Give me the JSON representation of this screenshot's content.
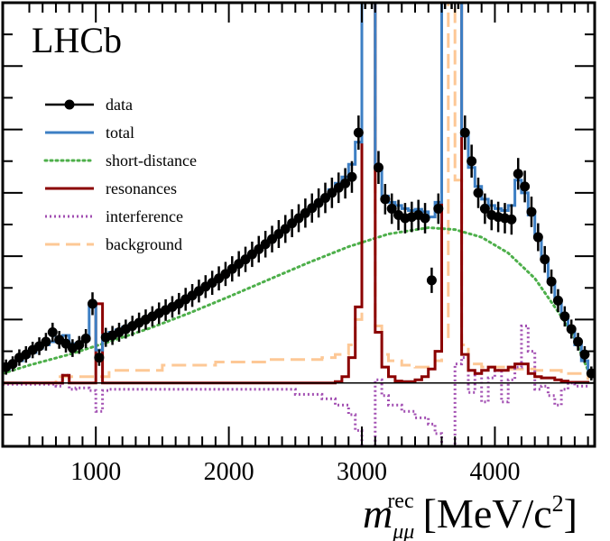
{
  "chart_data": {
    "type": "line",
    "title": "",
    "watermark": "LHCb",
    "xlabel": {
      "symbol": "m",
      "subscript": "μμ",
      "superscript": "rec",
      "unit": "[MeV/c",
      "unit_power": "2",
      "unit_close": "]"
    },
    "ylabel": "",
    "xlim": [
      300,
      4750
    ],
    "ylim": [
      -1.0,
      6.0
    ],
    "x_ticks": [
      1000,
      2000,
      3000,
      4000
    ],
    "x_tick_labels": [
      "1000",
      "2000",
      "3000",
      "4000"
    ],
    "colors": {
      "data": "#000000",
      "total": "#3d7fc4",
      "short_distance": "#4daf4a",
      "resonances": "#8b0000",
      "interference": "#a24fb2",
      "background": "#fdc896",
      "zero_line": "#000000"
    },
    "legend": {
      "placement": "upper-left",
      "entries": [
        {
          "key": "data",
          "label": "data"
        },
        {
          "key": "total",
          "label": "total"
        },
        {
          "key": "short_distance",
          "label": "short-distance"
        },
        {
          "key": "resonances",
          "label": "resonances"
        },
        {
          "key": "interference",
          "label": "interference"
        },
        {
          "key": "background",
          "label": "background"
        }
      ]
    },
    "data": {
      "x": [
        325,
        375,
        425,
        475,
        525,
        575,
        625,
        675,
        725,
        775,
        825,
        875,
        925,
        975,
        1025,
        1075,
        1125,
        1175,
        1225,
        1275,
        1325,
        1375,
        1425,
        1475,
        1525,
        1575,
        1625,
        1675,
        1725,
        1775,
        1825,
        1875,
        1925,
        1975,
        2025,
        2075,
        2125,
        2175,
        2225,
        2275,
        2325,
        2375,
        2425,
        2475,
        2525,
        2575,
        2625,
        2675,
        2725,
        2775,
        2825,
        2875,
        2925,
        2975,
        3025,
        3075,
        3125,
        3175,
        3225,
        3275,
        3325,
        3375,
        3425,
        3475,
        3525,
        3575,
        3625,
        3675,
        3725,
        3775,
        3825,
        3875,
        3925,
        3975,
        4025,
        4075,
        4125,
        4175,
        4225,
        4275,
        4325,
        4375,
        4425,
        4475,
        4525,
        4575,
        4625,
        4675,
        4725
      ],
      "y": [
        0.25,
        0.3,
        0.4,
        0.45,
        0.52,
        0.58,
        0.65,
        0.8,
        0.68,
        0.62,
        0.55,
        0.6,
        0.7,
        1.25,
        0.4,
        0.72,
        0.75,
        0.8,
        0.85,
        0.9,
        0.95,
        1.0,
        1.05,
        1.1,
        1.15,
        1.2,
        1.25,
        1.32,
        1.38,
        1.45,
        1.52,
        1.58,
        1.65,
        1.72,
        1.8,
        1.88,
        1.95,
        2.03,
        2.11,
        2.19,
        2.27,
        2.35,
        2.43,
        2.52,
        2.6,
        2.68,
        2.76,
        2.84,
        2.92,
        3.0,
        3.08,
        3.15,
        3.25,
        3.95,
        6.2,
        6.2,
        3.4,
        2.9,
        2.75,
        2.65,
        2.6,
        2.62,
        2.65,
        2.6,
        1.62,
        2.75,
        6.2,
        6.2,
        6.2,
        3.95,
        3.5,
        3.0,
        2.75,
        2.65,
        2.62,
        2.6,
        2.58,
        3.3,
        3.1,
        2.7,
        2.3,
        1.95,
        1.6,
        1.3,
        1.05,
        0.85,
        0.65,
        0.45,
        0.15
      ],
      "yerr": [
        0.12,
        0.12,
        0.13,
        0.13,
        0.13,
        0.14,
        0.14,
        0.15,
        0.14,
        0.14,
        0.14,
        0.14,
        0.15,
        0.18,
        0.13,
        0.15,
        0.15,
        0.15,
        0.15,
        0.16,
        0.16,
        0.16,
        0.16,
        0.17,
        0.17,
        0.17,
        0.17,
        0.18,
        0.18,
        0.18,
        0.18,
        0.19,
        0.19,
        0.19,
        0.2,
        0.2,
        0.2,
        0.2,
        0.21,
        0.21,
        0.21,
        0.22,
        0.22,
        0.22,
        0.22,
        0.23,
        0.23,
        0.23,
        0.24,
        0.24,
        0.24,
        0.24,
        0.25,
        0.27,
        0.3,
        0.3,
        0.26,
        0.24,
        0.24,
        0.24,
        0.24,
        0.24,
        0.24,
        0.24,
        0.2,
        0.24,
        0.3,
        0.3,
        0.3,
        0.27,
        0.26,
        0.24,
        0.24,
        0.24,
        0.24,
        0.24,
        0.24,
        0.25,
        0.25,
        0.24,
        0.22,
        0.21,
        0.19,
        0.18,
        0.16,
        0.15,
        0.14,
        0.13,
        0.11
      ]
    },
    "total": {
      "x": [
        300,
        350,
        400,
        450,
        500,
        550,
        600,
        650,
        700,
        750,
        800,
        850,
        900,
        950,
        1000,
        1050,
        1100,
        1150,
        1200,
        1250,
        1300,
        1350,
        1400,
        1450,
        1500,
        1550,
        1600,
        1650,
        1700,
        1750,
        1800,
        1850,
        1900,
        1950,
        2000,
        2050,
        2100,
        2150,
        2200,
        2250,
        2300,
        2350,
        2400,
        2450,
        2500,
        2550,
        2600,
        2650,
        2700,
        2750,
        2800,
        2850,
        2900,
        2950,
        3000,
        3050,
        3100,
        3150,
        3200,
        3250,
        3300,
        3350,
        3400,
        3450,
        3500,
        3550,
        3600,
        3650,
        3700,
        3750,
        3800,
        3850,
        3900,
        3950,
        4000,
        4050,
        4100,
        4150,
        4200,
        4250,
        4300,
        4350,
        4400,
        4450,
        4500,
        4550,
        4600,
        4650,
        4700
      ],
      "y": [
        0.22,
        0.28,
        0.35,
        0.42,
        0.48,
        0.55,
        0.6,
        0.65,
        0.72,
        0.75,
        0.62,
        0.62,
        0.68,
        1.25,
        0.52,
        0.75,
        0.8,
        0.84,
        0.88,
        0.92,
        0.96,
        1.0,
        1.05,
        1.1,
        1.15,
        1.2,
        1.25,
        1.32,
        1.38,
        1.45,
        1.52,
        1.58,
        1.65,
        1.72,
        1.8,
        1.88,
        1.95,
        2.03,
        2.11,
        2.19,
        2.27,
        2.35,
        2.43,
        2.52,
        2.6,
        2.68,
        2.76,
        2.84,
        2.92,
        3.05,
        3.15,
        3.25,
        3.45,
        3.8,
        6.2,
        6.2,
        3.4,
        2.95,
        2.85,
        2.8,
        2.75,
        2.72,
        2.74,
        2.7,
        2.62,
        2.85,
        6.2,
        6.2,
        6.2,
        3.9,
        3.4,
        3.1,
        2.9,
        2.8,
        2.75,
        2.72,
        2.8,
        3.2,
        3.0,
        2.65,
        2.3,
        1.95,
        1.6,
        1.3,
        1.05,
        0.85,
        0.6,
        0.35,
        0.2
      ]
    },
    "short_distance": {
      "x": [
        300,
        500,
        800,
        1100,
        1400,
        1700,
        2000,
        2300,
        2600,
        2900,
        3200,
        3500,
        3700,
        3900,
        4100,
        4300,
        4500,
        4600,
        4700
      ],
      "y": [
        0.15,
        0.28,
        0.45,
        0.65,
        0.86,
        1.1,
        1.36,
        1.63,
        1.9,
        2.15,
        2.35,
        2.45,
        2.42,
        2.3,
        2.05,
        1.65,
        1.05,
        0.7,
        0.2
      ]
    },
    "resonances": {
      "x": [
        300,
        700,
        750,
        800,
        850,
        950,
        1000,
        1050,
        1100,
        2700,
        2800,
        2850,
        2900,
        2950,
        3000,
        3050,
        3100,
        3150,
        3200,
        3250,
        3300,
        3350,
        3400,
        3450,
        3500,
        3550,
        3600,
        3650,
        3700,
        3750,
        3800,
        3850,
        3900,
        3950,
        4000,
        4050,
        4100,
        4150,
        4200,
        4250,
        4300,
        4350,
        4400,
        4450,
        4500,
        4550,
        4700
      ],
      "y": [
        0.0,
        0.0,
        0.12,
        0.0,
        0.0,
        0.0,
        1.25,
        0.0,
        0.0,
        0.0,
        0.02,
        0.1,
        0.4,
        1.2,
        6.2,
        6.2,
        0.8,
        0.25,
        0.1,
        0.03,
        0.02,
        0.02,
        0.05,
        0.1,
        0.22,
        0.5,
        6.2,
        6.2,
        6.2,
        0.45,
        0.2,
        0.15,
        0.2,
        0.25,
        0.2,
        0.2,
        0.25,
        0.3,
        0.3,
        0.15,
        0.1,
        0.08,
        0.08,
        0.05,
        0.03,
        0.01,
        0.0
      ]
    },
    "interference": {
      "x": [
        300,
        700,
        750,
        800,
        850,
        950,
        1000,
        1050,
        1100,
        2500,
        2700,
        2800,
        2900,
        2950,
        3000,
        3050,
        3100,
        3150,
        3200,
        3300,
        3400,
        3500,
        3550,
        3600,
        3650,
        3700,
        3750,
        3800,
        3850,
        3900,
        3950,
        4000,
        4050,
        4100,
        4150,
        4200,
        4250,
        4300,
        4350,
        4400,
        4450,
        4500,
        4550,
        4600,
        4700
      ],
      "y": [
        -0.02,
        -0.05,
        0.12,
        -0.1,
        -0.08,
        -0.12,
        -0.45,
        -0.12,
        -0.1,
        -0.18,
        -0.25,
        -0.35,
        -0.5,
        -0.75,
        -1.3,
        -1.3,
        0.05,
        -0.2,
        -0.35,
        -0.45,
        -0.55,
        -0.65,
        -0.8,
        -1.3,
        -1.3,
        0.3,
        0.4,
        -0.15,
        0.15,
        -0.3,
        0.08,
        0.2,
        -0.3,
        0.05,
        0.25,
        0.9,
        0.5,
        -0.1,
        -0.05,
        -0.2,
        -0.35,
        -0.1,
        0.0,
        -0.05,
        0.0
      ]
    },
    "background": {
      "x": [
        300,
        700,
        1100,
        1500,
        1900,
        2300,
        2700,
        2800,
        2900,
        2950,
        3000,
        3050,
        3100,
        3150,
        3200,
        3300,
        3400,
        3500,
        3550,
        3600,
        3650,
        3700,
        3750,
        3800,
        3900,
        4100,
        4300,
        4500,
        4700
      ],
      "y": [
        0.0,
        0.1,
        0.2,
        0.28,
        0.33,
        0.37,
        0.4,
        0.45,
        0.6,
        1.0,
        6.2,
        6.2,
        0.9,
        0.45,
        0.35,
        0.28,
        0.25,
        0.25,
        0.35,
        0.7,
        6.2,
        3.2,
        0.6,
        0.3,
        0.25,
        0.22,
        0.2,
        0.15,
        0.05
      ]
    }
  }
}
